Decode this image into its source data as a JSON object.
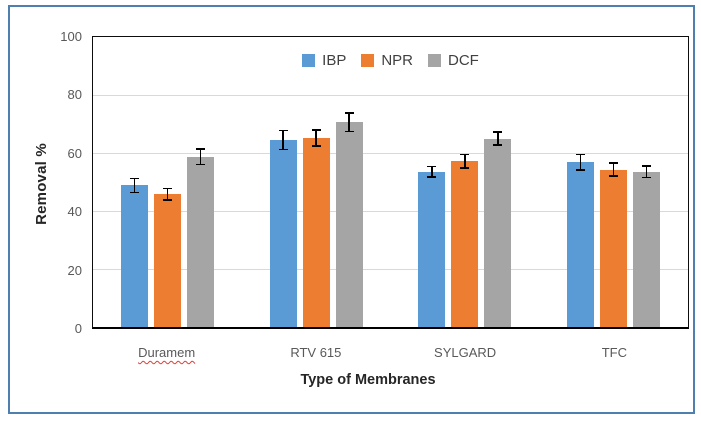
{
  "frame": {
    "border_color": "#4E7FAF"
  },
  "chart_data": {
    "type": "bar",
    "title": "",
    "xlabel": "Type of Membranes",
    "ylabel": "Removal %",
    "categories": [
      "Duramem",
      "RTV 615",
      "SYLGARD",
      "TFC"
    ],
    "series": [
      {
        "name": "IBP",
        "color": "#5B9BD5",
        "values": [
          48.8,
          64.5,
          53.5,
          56.8
        ],
        "errors": [
          2.7,
          3.5,
          2.1,
          3.0
        ]
      },
      {
        "name": "NPR",
        "color": "#ED7D31",
        "values": [
          45.8,
          65.2,
          57.2,
          54.3
        ],
        "errors": [
          2.2,
          3.1,
          2.6,
          2.5
        ]
      },
      {
        "name": "DCF",
        "color": "#A5A5A5",
        "values": [
          58.7,
          70.6,
          65.0,
          53.5
        ],
        "errors": [
          2.9,
          3.4,
          2.6,
          2.2
        ]
      }
    ],
    "ylim": [
      0,
      100
    ],
    "y_ticks": [
      100,
      80,
      60,
      40,
      20,
      0
    ],
    "grid": true,
    "legend_position": "top-center",
    "error_bars": true,
    "error_bar_color": "#000000",
    "gridline_color": "#D9D9D9",
    "axis_line_color": "#000000",
    "misspelled_category": "Duramem"
  }
}
